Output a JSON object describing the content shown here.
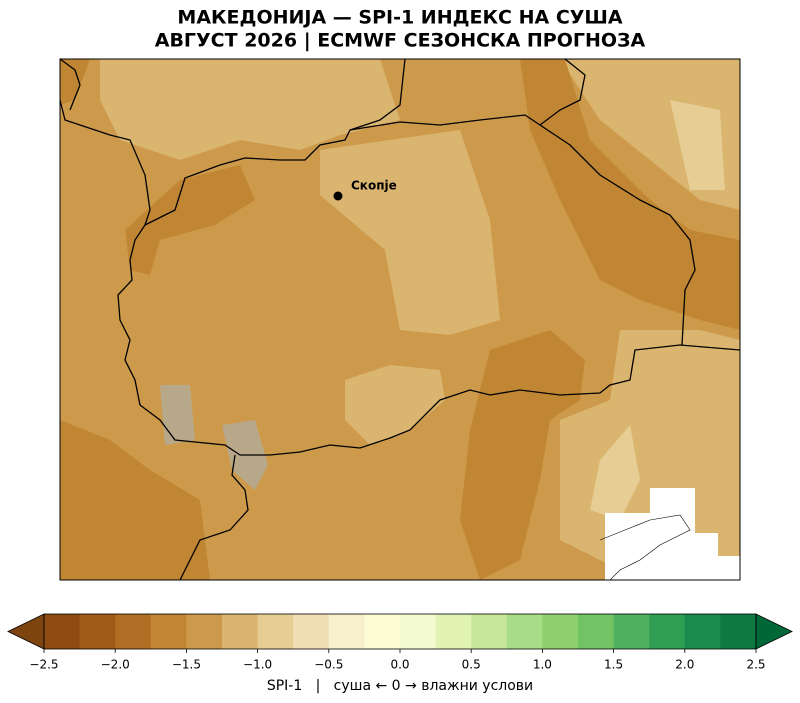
{
  "title": "МАКЕДОНИЈА — SPI-1 ИНДЕКС НА СУША",
  "subtitle": "АВГУСТ 2026 | ECMWF СЕЗОНСКА ПРОГНОЗА",
  "city": {
    "label": "Скопје"
  },
  "colorbar": {
    "label": "SPI-1   |   суша ← 0 → влажни услови",
    "levels": [
      -2.5,
      -2.25,
      -2,
      -1.75,
      -1.5,
      -1.25,
      -1,
      -0.75,
      -0.5,
      -0.25,
      0,
      0.25,
      0.5,
      0.75,
      1,
      1.25,
      1.5,
      1.75,
      2,
      2.25,
      2.5
    ],
    "colors": [
      "#8e4c13",
      "#a05a18",
      "#b06d24",
      "#c18633",
      "#cd9a4c",
      "#dab56f",
      "#e6cd93",
      "#f2deb3",
      "#f8efcc",
      "#fdfcd3",
      "#f4fbd0",
      "#e0f3b2",
      "#c7e89b",
      "#a9dc86",
      "#8fd06e",
      "#72c266",
      "#4fb15d",
      "#2f9e53",
      "#1a8b4c",
      "#0e7a42"
    ],
    "under_color": "#7d4410",
    "over_color": "#006837",
    "ticks": [
      {
        "value": -2.5,
        "label": "−2.5"
      },
      {
        "value": -2,
        "label": "−2.0"
      },
      {
        "value": -1.5,
        "label": "−1.5"
      },
      {
        "value": -1,
        "label": "−1.0"
      },
      {
        "value": -0.5,
        "label": "−0.5"
      },
      {
        "value": 0,
        "label": "0.0"
      },
      0.5,
      {
        "value": 1,
        "label": "1.0"
      },
      1.5,
      {
        "value": 2,
        "label": "2.0"
      },
      2.5
    ]
  }
}
